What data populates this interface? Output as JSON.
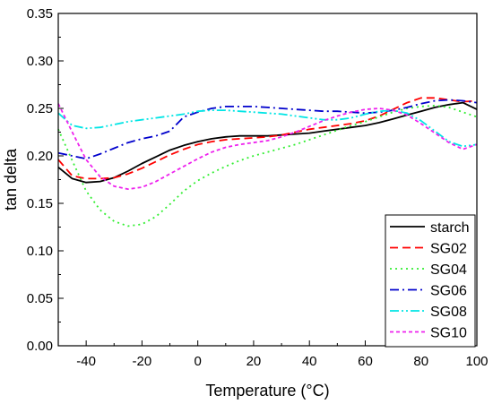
{
  "chart_data": {
    "type": "line",
    "title": "",
    "xlabel": "Temperature (°C)",
    "ylabel": "tan delta",
    "xlim": [
      -50,
      100
    ],
    "ylim": [
      0.0,
      0.35
    ],
    "x_ticks": [
      -40,
      -20,
      0,
      20,
      40,
      60,
      80,
      100
    ],
    "y_ticks": [
      0.0,
      0.05,
      0.1,
      0.15,
      0.2,
      0.25,
      0.3,
      0.35
    ],
    "y_tick_labels": [
      "0.00",
      "0.05",
      "0.10",
      "0.15",
      "0.20",
      "0.25",
      "0.30",
      "0.35"
    ],
    "grid": false,
    "legend_position": "bottom-right",
    "x": [
      -50,
      -45,
      -40,
      -35,
      -30,
      -25,
      -20,
      -15,
      -10,
      -5,
      0,
      5,
      10,
      15,
      20,
      25,
      30,
      35,
      40,
      45,
      50,
      55,
      60,
      65,
      70,
      75,
      80,
      85,
      90,
      95,
      100
    ],
    "series": [
      {
        "name": "starch",
        "color": "#000000",
        "dash": "solid",
        "values": [
          0.188,
          0.176,
          0.172,
          0.173,
          0.177,
          0.184,
          0.192,
          0.199,
          0.206,
          0.211,
          0.215,
          0.218,
          0.22,
          0.221,
          0.221,
          0.221,
          0.222,
          0.223,
          0.224,
          0.226,
          0.228,
          0.23,
          0.232,
          0.235,
          0.239,
          0.243,
          0.247,
          0.251,
          0.254,
          0.256,
          0.249
        ]
      },
      {
        "name": "SG02",
        "color": "#ff0000",
        "dash": "dashed",
        "values": [
          0.196,
          0.179,
          0.176,
          0.176,
          0.177,
          0.181,
          0.187,
          0.194,
          0.201,
          0.207,
          0.212,
          0.215,
          0.217,
          0.218,
          0.219,
          0.22,
          0.222,
          0.225,
          0.228,
          0.23,
          0.232,
          0.234,
          0.237,
          0.242,
          0.249,
          0.256,
          0.261,
          0.261,
          0.259,
          0.257,
          0.258
        ]
      },
      {
        "name": "SG04",
        "color": "#33ee33",
        "dash": "dotted",
        "values": [
          0.228,
          0.195,
          0.163,
          0.143,
          0.131,
          0.126,
          0.128,
          0.136,
          0.149,
          0.163,
          0.174,
          0.182,
          0.189,
          0.195,
          0.2,
          0.204,
          0.208,
          0.212,
          0.217,
          0.222,
          0.227,
          0.232,
          0.236,
          0.241,
          0.246,
          0.25,
          0.252,
          0.253,
          0.251,
          0.246,
          0.241
        ]
      },
      {
        "name": "SG06",
        "color": "#0000cc",
        "dash": "dashdot",
        "values": [
          0.203,
          0.2,
          0.197,
          0.202,
          0.208,
          0.214,
          0.218,
          0.221,
          0.226,
          0.241,
          0.246,
          0.25,
          0.252,
          0.252,
          0.252,
          0.251,
          0.25,
          0.249,
          0.248,
          0.247,
          0.247,
          0.246,
          0.245,
          0.246,
          0.248,
          0.251,
          0.255,
          0.258,
          0.259,
          0.258,
          0.256
        ]
      },
      {
        "name": "SG08",
        "color": "#00e5e5",
        "dash": "dashdotdot",
        "values": [
          0.245,
          0.232,
          0.229,
          0.23,
          0.233,
          0.236,
          0.238,
          0.24,
          0.242,
          0.244,
          0.247,
          0.248,
          0.248,
          0.247,
          0.246,
          0.245,
          0.244,
          0.242,
          0.24,
          0.238,
          0.238,
          0.24,
          0.244,
          0.247,
          0.248,
          0.245,
          0.237,
          0.226,
          0.215,
          0.21,
          0.212
        ]
      },
      {
        "name": "SG10",
        "color": "#ee22ee",
        "dash": "shortdash",
        "values": [
          0.255,
          0.225,
          0.196,
          0.178,
          0.168,
          0.165,
          0.167,
          0.173,
          0.181,
          0.189,
          0.197,
          0.204,
          0.209,
          0.212,
          0.214,
          0.216,
          0.22,
          0.225,
          0.231,
          0.237,
          0.242,
          0.246,
          0.249,
          0.25,
          0.248,
          0.243,
          0.234,
          0.224,
          0.214,
          0.207,
          0.212
        ]
      }
    ]
  }
}
